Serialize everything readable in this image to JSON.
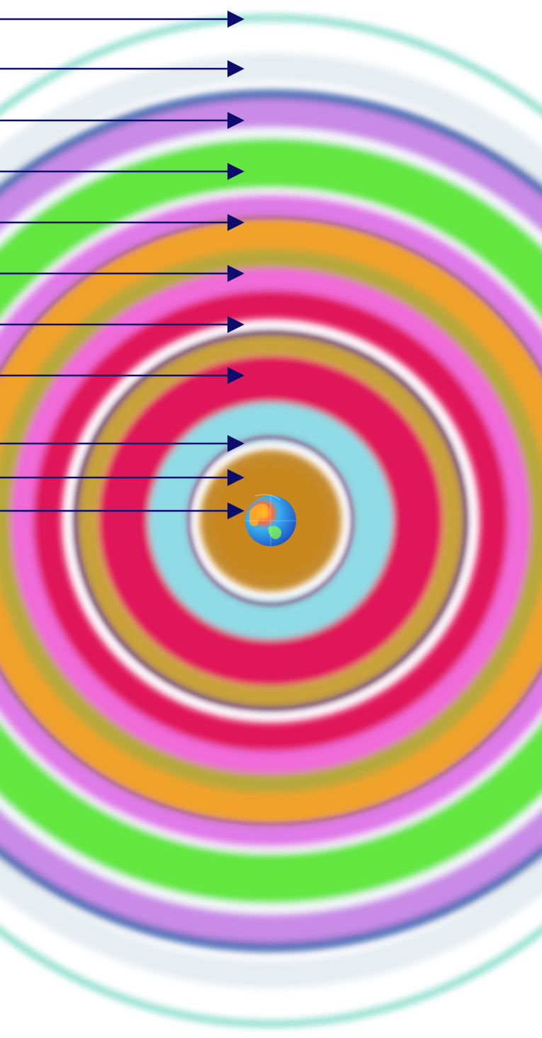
{
  "diagram": {
    "background_color": "#ffffff",
    "arrow_color": "#0d0d6e",
    "center_object": {
      "name": "globe",
      "description_icon": "earth-globe-icon",
      "colors": [
        "#1e6fd8",
        "#39b0f0",
        "#ff3b3b",
        "#ffb020",
        "#ffe23a",
        "#8cff3a"
      ]
    },
    "rings": [
      {
        "name": "ring-1-outer-teal",
        "color": "#7fd9c8"
      },
      {
        "name": "ring-2-blue-edge",
        "color": "#4b6fb5"
      },
      {
        "name": "ring-3-lavender",
        "color": "#c98be6"
      },
      {
        "name": "ring-4-green",
        "color": "#63e63f"
      },
      {
        "name": "ring-5-pink-violet",
        "color": "#e07ae8"
      },
      {
        "name": "ring-6-orange",
        "color": "#f0a22a"
      },
      {
        "name": "ring-7-olive",
        "color": "#b8a83a"
      },
      {
        "name": "ring-8-magenta",
        "color": "#f06ad8"
      },
      {
        "name": "ring-9-crimson",
        "color": "#e0175a"
      },
      {
        "name": "ring-10-dark-purple-line",
        "color": "#6a2a6e"
      },
      {
        "name": "ring-11-light-cyan",
        "color": "#8fdce6"
      },
      {
        "name": "ring-12-golden-brown",
        "color": "#c58a2a"
      }
    ]
  }
}
